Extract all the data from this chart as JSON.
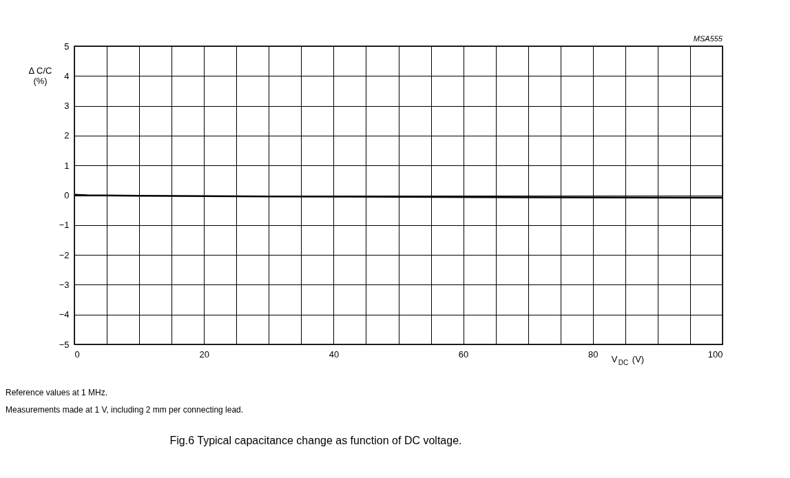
{
  "chart_data": {
    "type": "line",
    "title": "Fig.6  Typical capacitance change as function of DC voltage.",
    "xlabel": "V$_{DC}$ (V)",
    "ylabel": "Δ C/C\n(%)",
    "annotations": [
      "MSA555",
      "Reference values at 1 MHz.",
      "Measurements made at 1 V, including 2 mm per connecting lead."
    ],
    "x": [
      0,
      2,
      10,
      30,
      50,
      70,
      100
    ],
    "series": [
      {
        "color": "#000000",
        "values": [
          0.02,
          0,
          -0.02,
          -0.04,
          -0.05,
          -0.07,
          -0.08
        ]
      }
    ],
    "xlim": [
      0,
      100
    ],
    "xticks": [
      0,
      {
        "value": 5,
        "label": null
      },
      {
        "value": 10,
        "label": null
      },
      {
        "value": 15,
        "label": null
      },
      20,
      {
        "value": 25,
        "label": null
      },
      {
        "value": 30,
        "label": null
      },
      {
        "value": 35,
        "label": null
      },
      40,
      {
        "value": 45,
        "label": null
      },
      {
        "value": 50,
        "label": null
      },
      {
        "value": 55,
        "label": null
      },
      60,
      {
        "value": 65,
        "label": null
      },
      {
        "value": 70,
        "label": null
      },
      {
        "value": 75,
        "label": null
      },
      80,
      {
        "value": 85,
        "label": null
      },
      {
        "value": 90,
        "label": null
      },
      {
        "value": 95,
        "label": null
      },
      100
    ],
    "ylim": [
      -5,
      5
    ],
    "yticks": [
      -5,
      -4,
      -3,
      -2,
      -1,
      0,
      1,
      2,
      3,
      4,
      5
    ],
    "grid": true,
    "marker": "none",
    "line_style": "solid"
  }
}
